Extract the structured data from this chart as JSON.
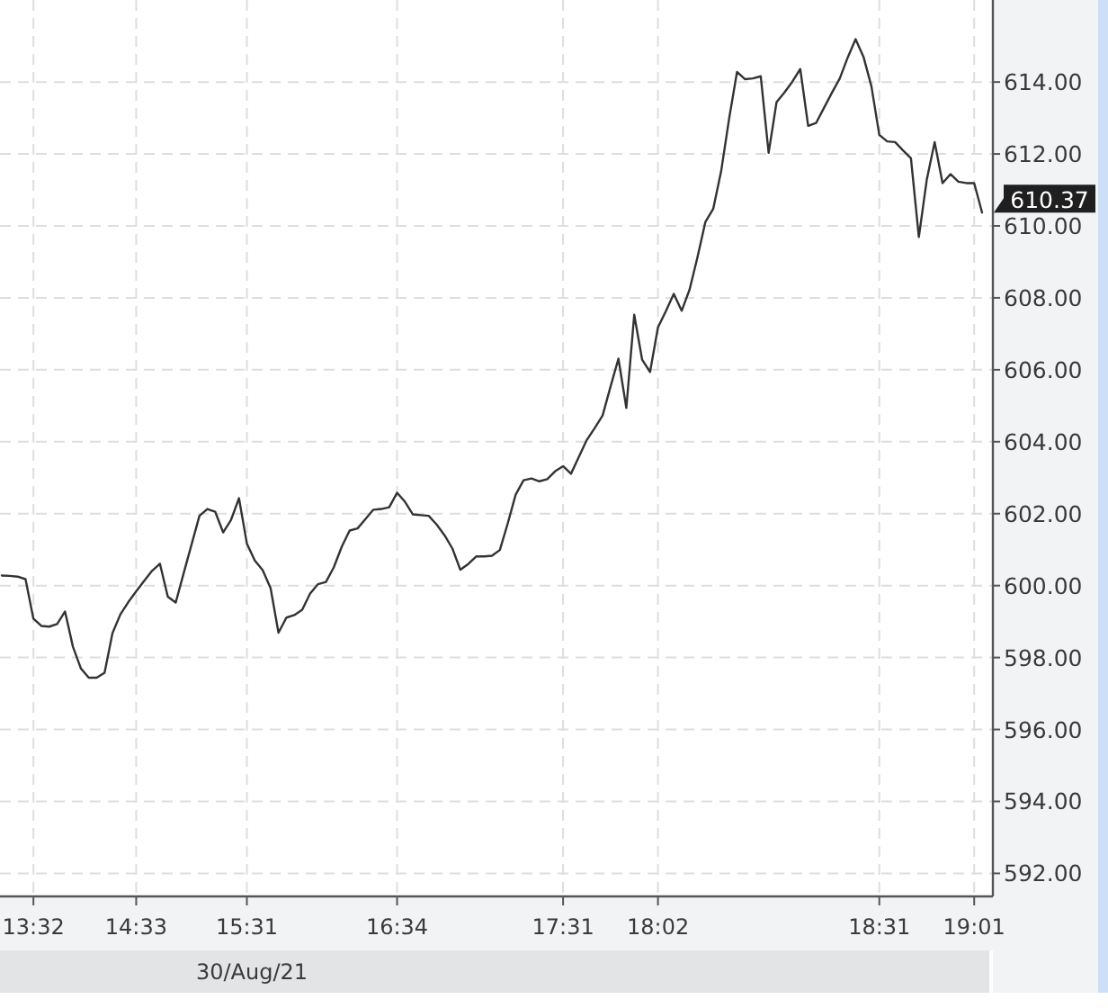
{
  "chart_data": {
    "type": "line",
    "xlabel": "30/Aug/21",
    "categories": [
      null,
      null,
      null,
      null,
      "13:32",
      null,
      null,
      null,
      null,
      null,
      null,
      null,
      null,
      null,
      null,
      null,
      null,
      "14:33",
      null,
      null,
      null,
      null,
      null,
      null,
      null,
      null,
      null,
      null,
      null,
      null,
      null,
      "15:31",
      null,
      null,
      null,
      null,
      null,
      null,
      null,
      null,
      null,
      null,
      null,
      null,
      null,
      null,
      null,
      null,
      null,
      null,
      "16:34",
      null,
      null,
      null,
      null,
      null,
      null,
      null,
      null,
      null,
      null,
      null,
      null,
      null,
      null,
      null,
      null,
      null,
      null,
      null,
      null,
      "17:31",
      null,
      null,
      null,
      null,
      null,
      null,
      null,
      null,
      null,
      null,
      null,
      "18:02",
      null,
      null,
      null,
      null,
      null,
      null,
      null,
      null,
      null,
      null,
      null,
      null,
      null,
      null,
      null,
      null,
      null,
      null,
      null,
      null,
      null,
      null,
      null,
      null,
      null,
      null,
      null,
      "18:31",
      null,
      null,
      null,
      null,
      null,
      null,
      null,
      null,
      null,
      null,
      null,
      "19:01",
      null
    ],
    "series": [
      {
        "color": "#333333",
        "values": [
          600.28,
          600.27,
          600.25,
          600.18,
          599.08,
          598.88,
          598.86,
          598.93,
          599.28,
          598.3,
          597.7,
          597.44,
          597.44,
          597.58,
          598.68,
          599.2,
          599.54,
          599.84,
          600.13,
          600.41,
          600.61,
          599.69,
          599.53,
          600.34,
          601.14,
          601.94,
          602.13,
          602.05,
          601.48,
          601.83,
          602.43,
          601.17,
          600.7,
          600.43,
          599.93,
          598.69,
          599.11,
          599.18,
          599.33,
          599.78,
          600.04,
          600.1,
          600.51,
          601.08,
          601.53,
          601.59,
          601.85,
          602.11,
          602.13,
          602.18,
          602.58,
          602.33,
          601.98,
          601.96,
          601.94,
          601.7,
          601.4,
          601.03,
          600.44,
          600.6,
          600.81,
          600.81,
          600.83,
          600.99,
          601.73,
          602.53,
          602.93,
          602.98,
          602.9,
          602.96,
          603.18,
          603.32,
          603.11,
          603.58,
          604.05,
          604.38,
          604.73,
          605.53,
          606.31,
          604.94,
          607.53,
          606.28,
          605.94,
          607.18,
          607.63,
          608.11,
          607.64,
          608.23,
          609.13,
          610.11,
          610.48,
          611.53,
          612.98,
          614.28,
          614.08,
          614.1,
          614.16,
          612.03,
          613.44,
          613.71,
          614.01,
          614.36,
          612.78,
          612.86,
          613.28,
          613.7,
          614.1,
          614.68,
          615.19,
          614.7,
          613.88,
          612.53,
          612.35,
          612.33,
          612.1,
          611.88,
          609.69,
          611.28,
          612.33,
          611.19,
          611.44,
          611.23,
          611.19,
          611.19,
          610.37
        ],
        "value_labels": [
          null,
          null,
          null,
          null,
          null,
          null,
          null,
          null,
          null,
          null,
          null,
          null,
          null,
          null,
          null,
          null,
          null,
          null,
          null,
          null,
          null,
          null,
          null,
          null,
          null,
          null,
          null,
          null,
          null,
          null,
          null,
          null,
          null,
          null,
          null,
          null,
          null,
          null,
          null,
          null,
          null,
          null,
          null,
          null,
          null,
          null,
          null,
          null,
          null,
          null,
          null,
          null,
          null,
          null,
          null,
          null,
          null,
          null,
          null,
          null,
          null,
          null,
          null,
          null,
          null,
          null,
          null,
          null,
          null,
          null,
          null,
          null,
          null,
          null,
          null,
          null,
          null,
          null,
          null,
          null,
          null,
          null,
          null,
          null,
          null,
          null,
          null,
          null,
          null,
          null,
          null,
          null,
          null,
          null,
          null,
          null,
          null,
          null,
          null,
          null,
          null,
          null,
          null,
          null,
          null,
          null,
          null,
          null,
          null,
          null,
          null,
          null,
          null,
          null,
          null,
          null,
          null,
          null,
          null,
          null,
          null,
          null,
          null,
          null,
          "610.37"
        ]
      }
    ],
    "ylim": [
      591.36,
      616.28
    ],
    "yticks": [
      {
        "value": 592,
        "label": "592.00"
      },
      {
        "value": 594,
        "label": "594.00"
      },
      {
        "value": 596,
        "label": "596.00"
      },
      {
        "value": 598,
        "label": "598.00"
      },
      {
        "value": 600,
        "label": "600.00"
      },
      {
        "value": 602,
        "label": "602.00"
      },
      {
        "value": 604,
        "label": "604.00"
      },
      {
        "value": 606,
        "label": "606.00"
      },
      {
        "value": 608,
        "label": "608.00"
      },
      {
        "value": 610,
        "label": "610.00"
      },
      {
        "value": 612,
        "label": "612.00"
      },
      {
        "value": 614,
        "label": "614.00"
      }
    ],
    "grid": true
  }
}
